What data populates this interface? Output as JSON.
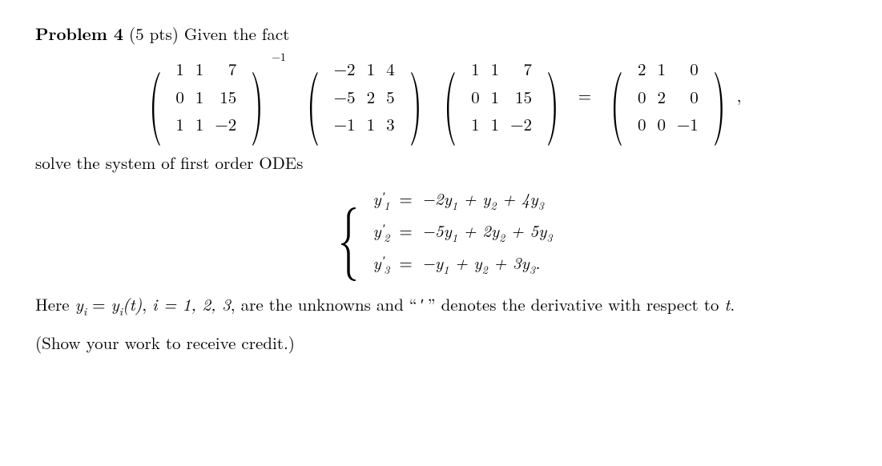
{
  "title": {
    "label": "Problem 4",
    "points": "(5 pts)",
    "intro": "Given the fact"
  },
  "colors": {
    "text": "#000000",
    "background": "#ffffff"
  },
  "equation": {
    "P": {
      "rows": [
        [
          "1",
          "1",
          "7"
        ],
        [
          "0",
          "1",
          "15"
        ],
        [
          "1",
          "1",
          "−2"
        ]
      ]
    },
    "inverse_exp": "−1",
    "B": {
      "rows": [
        [
          "−2",
          "1",
          "4"
        ],
        [
          "−5",
          "2",
          "5"
        ],
        [
          "−1",
          "1",
          "3"
        ]
      ]
    },
    "P2": {
      "rows": [
        [
          "1",
          "1",
          "7"
        ],
        [
          "0",
          "1",
          "15"
        ],
        [
          "1",
          "1",
          "−2"
        ]
      ]
    },
    "D": {
      "rows": [
        [
          "2",
          "1",
          "0"
        ],
        [
          "0",
          "2",
          "0"
        ],
        [
          "0",
          "0",
          "−1"
        ]
      ]
    },
    "equals": "=",
    "trailing": ","
  },
  "midtext": "solve the system of first order ODEs",
  "odes": {
    "rows": [
      {
        "lhs_var": "y",
        "lhs_sub": "1",
        "rhs": "−2y₁ + y₂ + 4y₃"
      },
      {
        "lhs_var": "y",
        "lhs_sub": "2",
        "rhs": "−5y₁ + 2y₂ + 5y₃"
      },
      {
        "lhs_var": "y",
        "lhs_sub": "3",
        "rhs": "−y₁ + y₂ + 3y₃."
      }
    ],
    "equals": "="
  },
  "tail": {
    "p1a": "Here ",
    "yi": "yᵢ",
    "p1b": " = ",
    "yit": "yᵢ(t)",
    "p1c": ", ",
    "irange": "i = 1, 2, 3",
    "p1d": ", are the unknowns and “ ′ ” denotes the derivative with respect to ",
    "tvar": "t",
    "p1e": ".",
    "p2": "(Show your work to receive credit.)"
  },
  "typography": {
    "base_fontsize_pt": 16,
    "matrix_paren_fontsize_pt": 69,
    "font_family": "Latin Modern / Computer Modern (serif)"
  }
}
